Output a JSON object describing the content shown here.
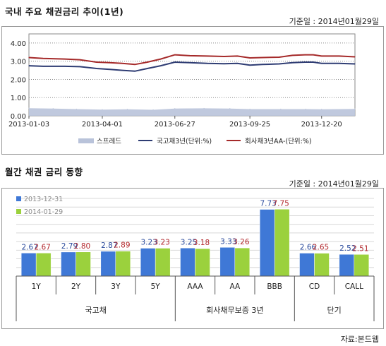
{
  "section1": {
    "title": "국내 주요 채권금리 추이(1년)",
    "date_label": "기준일 : 2014년01월29일"
  },
  "section2": {
    "title": "월간 채권 금리 동향",
    "date_label": "기준일 : 2014년01월29일",
    "source": "자료:본드웹"
  },
  "chart_data": [
    {
      "type": "line",
      "title": "국내 주요 채권금리 추이(1년)",
      "x_ticks": [
        "2013-01-03",
        "2013-04-01",
        "2013-06-27",
        "2013-09-25",
        "2013-12-20"
      ],
      "x_range": [
        "2013-01-03",
        "2014-01-29"
      ],
      "y_ticks": [
        "0.00",
        "1.00",
        "2.00",
        "3.00",
        "4.00"
      ],
      "ylim": [
        0,
        4.5
      ],
      "grid": true,
      "legend_position": "bottom",
      "series": [
        {
          "name": "스프레드",
          "kind": "area",
          "color": "#b9c3da",
          "points": [
            [
              "2013-01-03",
              0.42
            ],
            [
              "2013-02-01",
              0.4
            ],
            [
              "2013-03-01",
              0.37
            ],
            [
              "2013-04-01",
              0.34
            ],
            [
              "2013-05-01",
              0.36
            ],
            [
              "2013-06-01",
              0.33
            ],
            [
              "2013-06-27",
              0.4
            ],
            [
              "2013-08-01",
              0.41
            ],
            [
              "2013-09-01",
              0.4
            ],
            [
              "2013-09-25",
              0.37
            ],
            [
              "2013-11-01",
              0.37
            ],
            [
              "2013-12-01",
              0.37
            ],
            [
              "2013-12-20",
              0.36
            ],
            [
              "2014-01-29",
              0.38
            ]
          ]
        },
        {
          "name": "국고채3년(단위:%)",
          "kind": "line",
          "color": "#2e3c73",
          "points": [
            [
              "2013-01-03",
              2.75
            ],
            [
              "2013-01-20",
              2.72
            ],
            [
              "2013-02-15",
              2.72
            ],
            [
              "2013-03-05",
              2.7
            ],
            [
              "2013-03-25",
              2.6
            ],
            [
              "2013-04-10",
              2.55
            ],
            [
              "2013-04-25",
              2.5
            ],
            [
              "2013-05-10",
              2.45
            ],
            [
              "2013-05-25",
              2.6
            ],
            [
              "2013-06-10",
              2.75
            ],
            [
              "2013-06-27",
              2.95
            ],
            [
              "2013-07-15",
              2.92
            ],
            [
              "2013-08-05",
              2.88
            ],
            [
              "2013-08-25",
              2.86
            ],
            [
              "2013-09-10",
              2.88
            ],
            [
              "2013-09-25",
              2.78
            ],
            [
              "2013-10-10",
              2.82
            ],
            [
              "2013-10-30",
              2.85
            ],
            [
              "2013-11-15",
              2.92
            ],
            [
              "2013-11-30",
              2.95
            ],
            [
              "2013-12-10",
              2.95
            ],
            [
              "2013-12-20",
              2.88
            ],
            [
              "2014-01-10",
              2.88
            ],
            [
              "2014-01-29",
              2.85
            ]
          ]
        },
        {
          "name": "회사채3년AA-(단위:%)",
          "kind": "line",
          "color": "#a52a2a",
          "points": [
            [
              "2013-01-03",
              3.2
            ],
            [
              "2013-01-20",
              3.15
            ],
            [
              "2013-02-15",
              3.12
            ],
            [
              "2013-03-05",
              3.08
            ],
            [
              "2013-03-25",
              2.95
            ],
            [
              "2013-04-10",
              2.92
            ],
            [
              "2013-04-25",
              2.88
            ],
            [
              "2013-05-10",
              2.82
            ],
            [
              "2013-05-25",
              2.95
            ],
            [
              "2013-06-10",
              3.12
            ],
            [
              "2013-06-27",
              3.35
            ],
            [
              "2013-07-15",
              3.3
            ],
            [
              "2013-08-05",
              3.28
            ],
            [
              "2013-08-25",
              3.26
            ],
            [
              "2013-09-10",
              3.28
            ],
            [
              "2013-09-25",
              3.18
            ],
            [
              "2013-10-10",
              3.2
            ],
            [
              "2013-10-30",
              3.22
            ],
            [
              "2013-11-15",
              3.32
            ],
            [
              "2013-11-30",
              3.35
            ],
            [
              "2013-12-10",
              3.35
            ],
            [
              "2013-12-20",
              3.28
            ],
            [
              "2014-01-10",
              3.28
            ],
            [
              "2014-01-29",
              3.24
            ]
          ]
        }
      ]
    },
    {
      "type": "bar",
      "title": "월간 채권 금리 동향",
      "categories": [
        "1Y",
        "2Y",
        "3Y",
        "5Y",
        "AAA",
        "AA",
        "BBB",
        "CD",
        "CALL"
      ],
      "groups": [
        {
          "label": "국고채",
          "members": [
            "1Y",
            "2Y",
            "3Y",
            "5Y"
          ]
        },
        {
          "label": "회사채무보증 3년",
          "members": [
            "AAA",
            "AA",
            "BBB"
          ]
        },
        {
          "label": "단기",
          "members": [
            "CD",
            "CALL"
          ]
        }
      ],
      "legend_position": "top-left",
      "grid": true,
      "ylim": [
        0,
        9
      ],
      "series": [
        {
          "name": "2013-12-31",
          "color": "#3f78d6",
          "label_color": "#2a4a9c",
          "values": [
            2.67,
            2.79,
            2.87,
            3.23,
            3.25,
            3.33,
            7.73,
            2.66,
            2.52
          ],
          "labels": [
            "2.67",
            "2.79",
            "2.87",
            "3.23",
            "3.25",
            "3.33",
            "7.73",
            "2.66",
            "2.52"
          ]
        },
        {
          "name": "2014-01-29",
          "color": "#9bd13d",
          "label_color": "#b3282d",
          "values": [
            2.67,
            2.8,
            2.89,
            3.23,
            3.18,
            3.26,
            7.75,
            2.65,
            2.51
          ],
          "labels": [
            "2.67",
            "2.80",
            "2.89",
            "3.23",
            "3.18",
            "3.26",
            "7.75",
            "2.65",
            "2.51"
          ]
        }
      ]
    }
  ]
}
